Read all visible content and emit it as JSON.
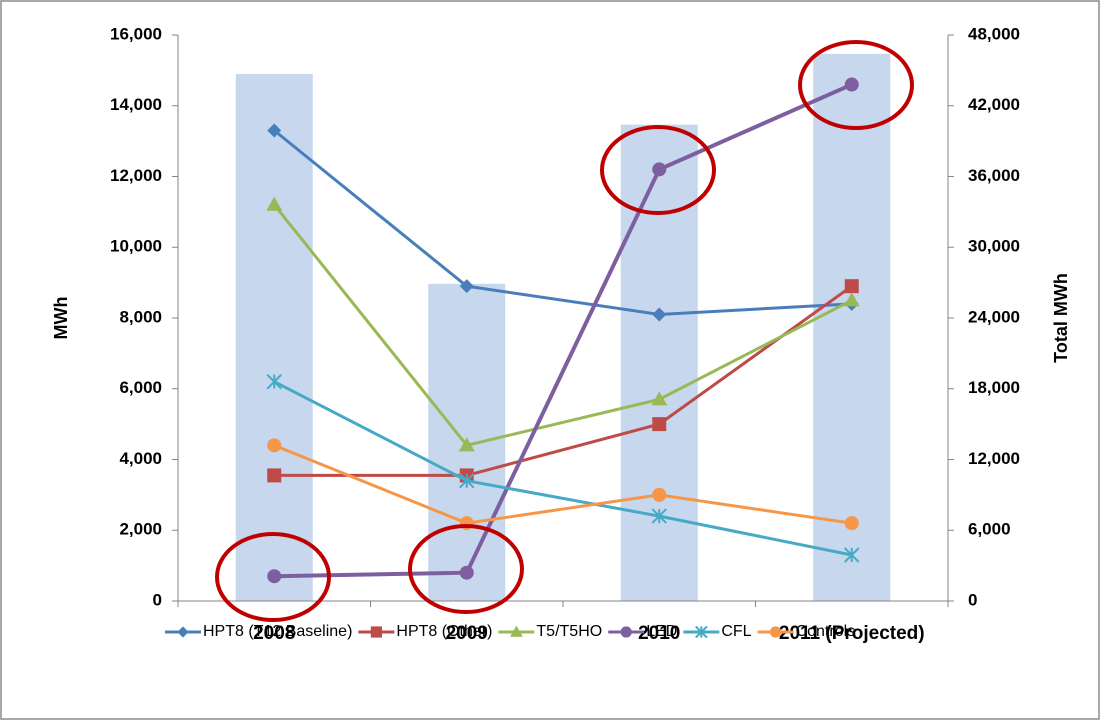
{
  "chart_data": {
    "type": "bar_line",
    "categories": [
      "2008",
      "2009",
      "2010",
      "2011 (Projected)"
    ],
    "y_label": "MWh",
    "y2_label": "Total MWh",
    "ylim": [
      0,
      16000
    ],
    "yticks": [
      0,
      {
        "value": 2000,
        "label": "2,000"
      },
      {
        "value": 4000,
        "label": "4,000"
      },
      {
        "value": 6000,
        "label": "6,000"
      },
      {
        "value": 8000,
        "label": "8,000"
      },
      {
        "value": 10000,
        "label": "10,000"
      },
      {
        "value": 12000,
        "label": "12,000"
      },
      {
        "value": 14000,
        "label": "14,000"
      },
      {
        "value": 16000,
        "label": "16,000"
      }
    ],
    "y2lim": [
      0,
      48000
    ],
    "y2ticks": [
      0,
      {
        "value": 6000,
        "label": "6,000"
      },
      {
        "value": 12000,
        "label": "12,000"
      },
      {
        "value": 18000,
        "label": "18,000"
      },
      {
        "value": 24000,
        "label": "24,000"
      },
      {
        "value": 30000,
        "label": "30,000"
      },
      {
        "value": 36000,
        "label": "36,000"
      },
      {
        "value": 42000,
        "label": "42,000"
      },
      {
        "value": 48000,
        "label": "48,000"
      }
    ],
    "bars": {
      "color": "#c6d7ee",
      "axis": "y2",
      "values": [
        44700,
        26900,
        40400,
        46400
      ]
    },
    "series": [
      {
        "name": "HPT8 (T12 Baseline)",
        "color": "#4a7ebb",
        "marker": "diamond",
        "values": [
          13300,
          8900,
          8100,
          8400
        ]
      },
      {
        "name": "HPT8 (Other)",
        "color": "#be4b48",
        "marker": "square",
        "values": [
          3550,
          3550,
          5000,
          8900
        ]
      },
      {
        "name": "T5/T5HO",
        "color": "#98b954",
        "marker": "triangle",
        "values": [
          11200,
          4400,
          5700,
          8500
        ]
      },
      {
        "name": "LED",
        "color": "#7d5fa0",
        "marker": "circle",
        "values": [
          700,
          800,
          12200,
          14600
        ]
      },
      {
        "name": "CFL",
        "color": "#46aac5",
        "marker": "asterisk",
        "values": [
          6200,
          3400,
          2400,
          1300
        ]
      },
      {
        "name": "Controls",
        "color": "#f79646",
        "marker": "circle",
        "values": [
          4400,
          2200,
          3000,
          2200
        ]
      }
    ]
  }
}
